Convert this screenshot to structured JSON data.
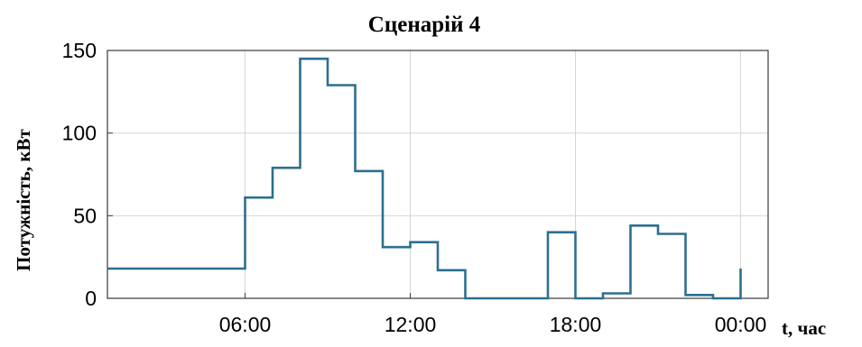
{
  "chart_data": {
    "type": "line",
    "step": true,
    "title": "Сценарій 4",
    "ylabel": "Потужність, кВт",
    "xlabel": "t, час",
    "xlim": [
      1,
      25
    ],
    "ylim": [
      0,
      150
    ],
    "x_ticks": [
      {
        "value": 6,
        "label": "06:00"
      },
      {
        "value": 12,
        "label": "12:00"
      },
      {
        "value": 18,
        "label": "18:00"
      },
      {
        "value": 24,
        "label": "00:00"
      }
    ],
    "y_ticks": [
      {
        "value": 0,
        "label": "0"
      },
      {
        "value": 50,
        "label": "50"
      },
      {
        "value": 100,
        "label": "100"
      },
      {
        "value": 150,
        "label": "150"
      }
    ],
    "grid": true,
    "series": [
      {
        "color": "#2d6f8f",
        "points": [
          [
            1,
            18
          ],
          [
            6,
            18
          ],
          [
            6,
            61
          ],
          [
            7,
            61
          ],
          [
            7,
            79
          ],
          [
            8,
            79
          ],
          [
            8,
            145
          ],
          [
            9,
            145
          ],
          [
            9,
            129
          ],
          [
            10,
            129
          ],
          [
            10,
            77
          ],
          [
            11,
            77
          ],
          [
            11,
            31
          ],
          [
            12,
            31
          ],
          [
            12,
            34
          ],
          [
            13,
            34
          ],
          [
            13,
            17
          ],
          [
            14,
            17
          ],
          [
            14,
            0
          ],
          [
            17,
            0
          ],
          [
            17,
            40
          ],
          [
            18,
            40
          ],
          [
            18,
            0
          ],
          [
            19,
            0
          ],
          [
            19,
            3
          ],
          [
            20,
            3
          ],
          [
            20,
            44
          ],
          [
            21,
            44
          ],
          [
            21,
            39
          ],
          [
            22,
            39
          ],
          [
            22,
            2
          ],
          [
            23,
            2
          ],
          [
            23,
            0
          ],
          [
            24,
            0
          ],
          [
            24,
            18
          ],
          [
            24,
            0
          ]
        ]
      }
    ]
  }
}
